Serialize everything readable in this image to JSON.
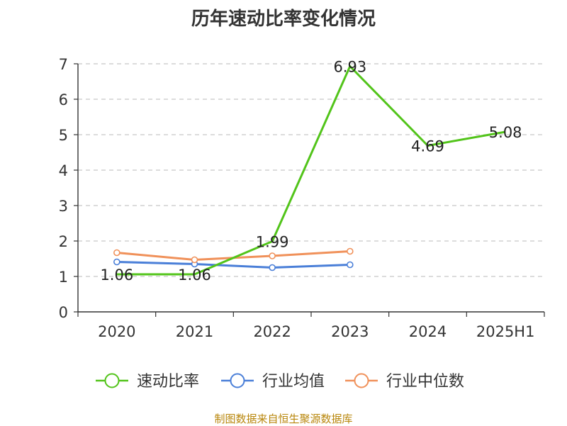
{
  "title": "历年速动比率变化情况",
  "source": "制图数据来自恒生聚源数据库",
  "colors": {
    "series": [
      "#52c41a",
      "#4a7fd8",
      "#f0915a"
    ],
    "axis": "#333333",
    "grid": "#c8c8c8",
    "label": "#222222"
  },
  "chart_data": {
    "type": "line",
    "title": "历年速动比率变化情况",
    "xlabel": "",
    "ylabel": "",
    "ylim": [
      0,
      7
    ],
    "yticks": [
      0,
      1,
      2,
      3,
      4,
      5,
      6,
      7
    ],
    "grid": true,
    "legend_position": "bottom",
    "categories": [
      "2020",
      "2021",
      "2022",
      "2023",
      "2024",
      "2025H1"
    ],
    "series": [
      {
        "name": "速动比率",
        "values": [
          1.06,
          1.06,
          1.99,
          6.93,
          4.69,
          5.08
        ],
        "labels": [
          "1.06",
          "1.06",
          "1.99",
          "6.93",
          "4.69",
          "5.08"
        ]
      },
      {
        "name": "行业均值",
        "values": [
          1.41,
          1.35,
          1.25,
          1.33,
          null,
          null
        ]
      },
      {
        "name": "行业中位数",
        "values": [
          1.67,
          1.47,
          1.58,
          1.71,
          null,
          null
        ]
      }
    ]
  }
}
